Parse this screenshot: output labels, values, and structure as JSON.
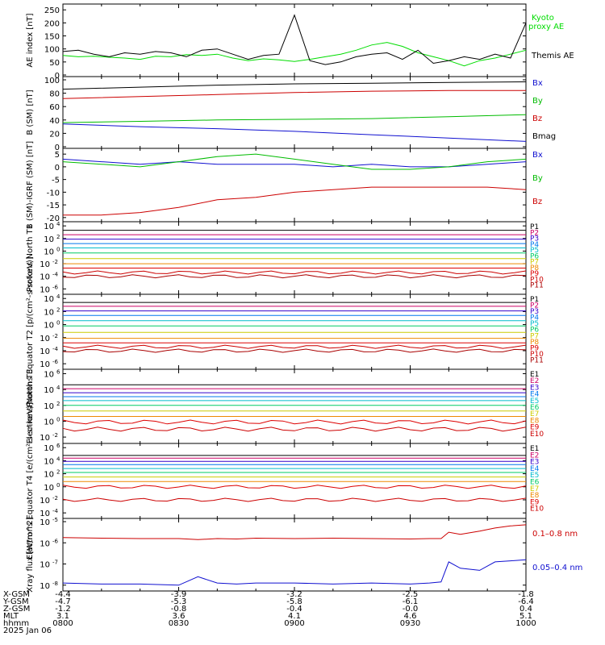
{
  "chart_data": [
    {
      "type": "line",
      "ylabel": "AE index [nT]",
      "yticks": [
        "0",
        "50",
        "100",
        "150",
        "200",
        "250"
      ],
      "ylim": [
        0,
        260
      ],
      "x": [
        0,
        4,
        8,
        12,
        16,
        20,
        24,
        28,
        32,
        36,
        40,
        44,
        48,
        52,
        56,
        60,
        64,
        68,
        72,
        76,
        80,
        84,
        88,
        92,
        96,
        100,
        104,
        108,
        112,
        116,
        120
      ],
      "series": [
        {
          "name": "Kyoto proxy AE",
          "color": "#00dd00",
          "values": [
            75,
            70,
            72,
            68,
            65,
            60,
            72,
            70,
            78,
            75,
            80,
            65,
            55,
            62,
            58,
            52,
            60,
            70,
            80,
            95,
            115,
            125,
            110,
            85,
            70,
            55,
            35,
            55,
            65,
            80,
            95
          ]
        },
        {
          "name": "Themis AE",
          "color": "#000000",
          "values": [
            90,
            95,
            80,
            70,
            85,
            80,
            90,
            85,
            70,
            95,
            100,
            80,
            60,
            75,
            80,
            230,
            55,
            40,
            50,
            70,
            80,
            85,
            60,
            95,
            45,
            55,
            70,
            60,
            80,
            65,
            200
          ]
        }
      ],
      "legend": [
        "Kyoto",
        "proxy AE",
        "Themis AE"
      ]
    },
    {
      "type": "line",
      "ylabel": "B (SM) [nT]",
      "yticks": [
        "0",
        "20",
        "40",
        "60",
        "80",
        "100"
      ],
      "ylim": [
        0,
        100
      ],
      "x": [
        0,
        20,
        40,
        60,
        80,
        100,
        120
      ],
      "series": [
        {
          "name": "Bx",
          "color": "#1010d0",
          "values": [
            34,
            30,
            27,
            23,
            18,
            13,
            8
          ]
        },
        {
          "name": "By",
          "color": "#00bb00",
          "values": [
            36,
            38,
            40,
            41,
            42,
            45,
            48
          ]
        },
        {
          "name": "Bz",
          "color": "#cc0000",
          "values": [
            72,
            75,
            78,
            81,
            83,
            84,
            84
          ]
        },
        {
          "name": "Bmag",
          "color": "#000000",
          "values": [
            86,
            89,
            92,
            94,
            95,
            96,
            97
          ]
        }
      ],
      "legend": [
        "Bx",
        "By",
        "Bz",
        "Bmag"
      ]
    },
    {
      "type": "line",
      "ylabel": "B (SM)-IGRF (SM) [nT]",
      "yticks": [
        "5",
        "0",
        "-5",
        "-10",
        "-15",
        "-20"
      ],
      "ylim": [
        -21,
        6
      ],
      "x": [
        0,
        10,
        20,
        30,
        40,
        50,
        60,
        70,
        80,
        90,
        100,
        110,
        120
      ],
      "series": [
        {
          "name": "Bx",
          "color": "#1010d0",
          "values": [
            3,
            2,
            1,
            2,
            1,
            1,
            1,
            0,
            1,
            0,
            0,
            1,
            2
          ]
        },
        {
          "name": "By",
          "color": "#00bb00",
          "values": [
            2,
            1,
            0,
            2,
            4,
            5,
            3,
            1,
            -1,
            -1,
            0,
            2,
            3
          ]
        },
        {
          "name": "Bz",
          "color": "#cc0000",
          "values": [
            -19,
            -19,
            -18,
            -16,
            -13,
            -12,
            -10,
            -9,
            -8,
            -8,
            -8,
            -8,
            -9
          ]
        }
      ],
      "legend": [
        "Bx",
        "By",
        "Bz"
      ]
    },
    {
      "type": "line",
      "ylabel": "Protons North T1",
      "yscale": "log",
      "yticks": [
        "10^4",
        "10^2",
        "10^0",
        "10^-2",
        "10^-4",
        "10^-6"
      ],
      "series": [
        {
          "name": "P1",
          "color": "#000000",
          "log_value": 3.3
        },
        {
          "name": "P2",
          "color": "#cc0066",
          "log_value": 2.6
        },
        {
          "name": "P3",
          "color": "#3300cc",
          "log_value": 1.9
        },
        {
          "name": "P4",
          "color": "#0077ee",
          "log_value": 1.2
        },
        {
          "name": "P5",
          "color": "#00bbcc",
          "log_value": 0.5
        },
        {
          "name": "P6",
          "color": "#00cc66",
          "log_value": -0.3
        },
        {
          "name": "P7",
          "color": "#cccc00",
          "log_value": -1.2
        },
        {
          "name": "P8",
          "color": "#ee8800",
          "log_value": -2.0
        },
        {
          "name": "P9",
          "color": "#dd0000",
          "log_value": -2.7
        },
        {
          "name": "P10",
          "color": "#cc0000",
          "log_value": -3.4
        },
        {
          "name": "P11",
          "color": "#aa0000",
          "log_value": -4.0
        }
      ],
      "legend": [
        "P1",
        "P2",
        "P3",
        "P4",
        "P5",
        "P6",
        "P7",
        "P8",
        "P9",
        "P10",
        "P11"
      ]
    },
    {
      "type": "line",
      "ylabel": "Protons Equator T2 [p/(cm²-s-sr-keV)]",
      "yscale": "log",
      "yticks": [
        "10^4",
        "10^2",
        "10^0",
        "10^-2",
        "10^-4",
        "10^-6"
      ],
      "series": [
        {
          "name": "P1",
          "color": "#000000",
          "log_value": 3.4
        },
        {
          "name": "P2",
          "color": "#cc0066",
          "log_value": 2.8
        },
        {
          "name": "P3",
          "color": "#3300cc",
          "log_value": 2.1
        },
        {
          "name": "P4",
          "color": "#0077ee",
          "log_value": 1.4
        },
        {
          "name": "P5",
          "color": "#00bbcc",
          "log_value": 0.6
        },
        {
          "name": "P6",
          "color": "#00cc66",
          "log_value": -0.2
        },
        {
          "name": "P7",
          "color": "#cccc00",
          "log_value": -1.2
        },
        {
          "name": "P8",
          "color": "#ee8800",
          "log_value": -2.1
        },
        {
          "name": "P9",
          "color": "#dd0000",
          "log_value": -2.8
        },
        {
          "name": "P10",
          "color": "#cc0000",
          "log_value": -3.4
        },
        {
          "name": "P11",
          "color": "#aa0000",
          "log_value": -4.0
        }
      ],
      "legend": [
        "P1",
        "P2",
        "P3",
        "P4",
        "P5",
        "P6",
        "P7",
        "P8",
        "P9",
        "P10",
        "P11"
      ]
    },
    {
      "type": "line",
      "ylabel": "Electrons North T3",
      "yscale": "log",
      "yticks": [
        "10^6",
        "10^4",
        "10^2",
        "10^0",
        "10^-2"
      ],
      "series": [
        {
          "name": "E1",
          "color": "#000000",
          "log_value": 4.6
        },
        {
          "name": "E2",
          "color": "#cc0066",
          "log_value": 4.1
        },
        {
          "name": "E3",
          "color": "#3300cc",
          "log_value": 3.6
        },
        {
          "name": "E4",
          "color": "#0077ee",
          "log_value": 3.1
        },
        {
          "name": "E5",
          "color": "#00bbcc",
          "log_value": 2.6
        },
        {
          "name": "E6",
          "color": "#00cc66",
          "log_value": 2.0
        },
        {
          "name": "E7",
          "color": "#cccc00",
          "log_value": 1.3
        },
        {
          "name": "E8",
          "color": "#ee8800",
          "log_value": 0.6
        },
        {
          "name": "E9",
          "color": "#dd0000",
          "log_value": -0.1
        },
        {
          "name": "E10",
          "color": "#cc0000",
          "log_value": -1.0
        }
      ],
      "legend": [
        "E1",
        "E2",
        "E3",
        "E4",
        "E5",
        "E6",
        "E7",
        "E8",
        "E9",
        "E10"
      ]
    },
    {
      "type": "line",
      "ylabel": "Electrons Equator T4 [e/(cm²-s-sr-keV)]",
      "yscale": "log",
      "yticks": [
        "10^6",
        "10^4",
        "10^2",
        "10^0",
        "10^-2",
        "10^-4"
      ],
      "series": [
        {
          "name": "E1",
          "color": "#000000",
          "log_value": 4.8
        },
        {
          "name": "E2",
          "color": "#cc0066",
          "log_value": 4.4
        },
        {
          "name": "E3",
          "color": "#3300cc",
          "log_value": 3.9
        },
        {
          "name": "E4",
          "color": "#0077ee",
          "log_value": 3.4
        },
        {
          "name": "E5",
          "color": "#00bbcc",
          "log_value": 2.8
        },
        {
          "name": "E6",
          "color": "#00cc66",
          "log_value": 2.2
        },
        {
          "name": "E7",
          "color": "#cccc00",
          "log_value": 1.5
        },
        {
          "name": "E8",
          "color": "#ee8800",
          "log_value": 0.8
        },
        {
          "name": "E9",
          "color": "#dd0000",
          "log_value": 0.0
        },
        {
          "name": "E10",
          "color": "#cc0000",
          "log_value": -2.0
        }
      ],
      "legend": [
        "E1",
        "E2",
        "E3",
        "E4",
        "E5",
        "E6",
        "E7",
        "E8",
        "E9",
        "E10"
      ]
    },
    {
      "type": "line",
      "ylabel": "Xray flux [W/m^2]",
      "yscale": "log",
      "yticks": [
        "10^-5",
        "10^-6",
        "10^-7",
        "10^-8"
      ],
      "ylim_log": [
        -8.2,
        -5.0
      ],
      "x": [
        0,
        10,
        20,
        30,
        35,
        40,
        45,
        50,
        60,
        70,
        80,
        90,
        95,
        98,
        100,
        103,
        108,
        112,
        116,
        120
      ],
      "series": [
        {
          "name": "0.1-0.8 nm",
          "color": "#cc0000",
          "values_log": [
            -5.75,
            -5.78,
            -5.8,
            -5.8,
            -5.85,
            -5.8,
            -5.82,
            -5.78,
            -5.8,
            -5.78,
            -5.8,
            -5.82,
            -5.8,
            -5.8,
            -5.5,
            -5.6,
            -5.45,
            -5.3,
            -5.2,
            -5.15
          ]
        },
        {
          "name": "0.05-0.4 nm",
          "color": "#1010d0",
          "values_log": [
            -7.9,
            -7.95,
            -7.95,
            -8.0,
            -7.6,
            -7.9,
            -7.95,
            -7.9,
            -7.9,
            -7.95,
            -7.9,
            -7.95,
            -7.9,
            -7.85,
            -6.9,
            -7.2,
            -7.3,
            -6.9,
            -6.85,
            -6.8
          ]
        }
      ],
      "legend": [
        "0.1–0.8 nm",
        "0.05–0.4 nm"
      ]
    }
  ],
  "xaxis": {
    "row_labels": [
      "X-GSM",
      "Y-GSM",
      "Z-GSM",
      "MLT",
      "hhmm",
      "2025 Jan 06"
    ],
    "columns": [
      {
        "x": 0,
        "values": [
          "-4.4",
          "-4.7",
          "-1.2",
          "3.1",
          "0800"
        ]
      },
      {
        "x": 30,
        "values": [
          "-3.9",
          "-5.3",
          "-0.8",
          "3.6",
          "0830"
        ]
      },
      {
        "x": 60,
        "values": [
          "-3.2",
          "-5.8",
          "-0.4",
          "4.1",
          "0900"
        ]
      },
      {
        "x": 90,
        "values": [
          "-2.5",
          "-6.1",
          "-0.0",
          "4.6",
          "0930"
        ]
      },
      {
        "x": 120,
        "values": [
          "-1.8",
          "-6.4",
          "0.4",
          "5.1",
          "1000"
        ]
      }
    ]
  }
}
